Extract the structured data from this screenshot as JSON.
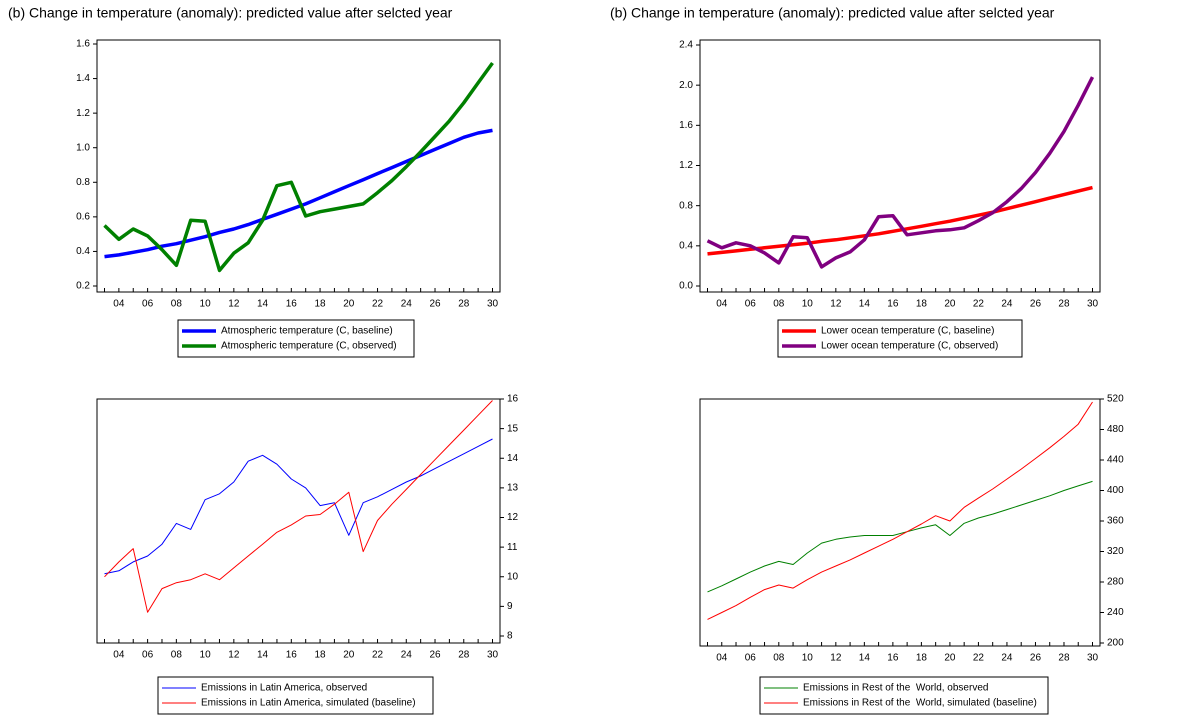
{
  "chart_data": [
    {
      "type": "line",
      "title": "(b) Change in temperature (anomaly): predicted value after selcted year",
      "categories": [
        null,
        "04",
        null,
        "06",
        null,
        "08",
        null,
        "10",
        null,
        "12",
        null,
        "14",
        null,
        "16",
        null,
        "18",
        null,
        "20",
        null,
        "22",
        null,
        "24",
        null,
        "26",
        null,
        "28",
        null,
        "30"
      ],
      "series": [
        {
          "name": "Atmospheric temperature (C, baseline)",
          "color": "#0000ff",
          "values": [
            0.37,
            0.38,
            0.395,
            0.41,
            0.43,
            0.445,
            0.465,
            0.485,
            0.51,
            0.53,
            0.555,
            0.585,
            0.615,
            0.645,
            0.675,
            0.71,
            0.745,
            0.78,
            0.815,
            0.85,
            0.885,
            0.92,
            0.955,
            0.99,
            1.025,
            1.06,
            1.085,
            1.1
          ]
        },
        {
          "name": "Atmospheric temperature (C, observed)",
          "color": "#008000",
          "values": [
            0.55,
            0.47,
            0.53,
            0.49,
            0.41,
            0.32,
            0.58,
            0.575,
            0.29,
            0.39,
            0.45,
            0.58,
            0.78,
            0.8,
            0.605,
            0.63,
            0.645,
            0.66,
            0.675,
            0.74,
            0.81,
            0.89,
            0.975,
            1.065,
            1.155,
            1.26,
            1.375,
            1.49
          ]
        }
      ],
      "ylim": [
        0.2,
        1.6
      ],
      "yticks": [
        0.2,
        0.4,
        0.6,
        0.8,
        {
          "value": 1,
          "label": "1.0"
        },
        1.2,
        1.4,
        1.6
      ],
      "y_axis": "left"
    },
    {
      "type": "line",
      "title": "(b) Change in temperature (anomaly): predicted value after selcted year",
      "categories": [
        null,
        "04",
        null,
        "06",
        null,
        "08",
        null,
        "10",
        null,
        "12",
        null,
        "14",
        null,
        "16",
        null,
        "18",
        null,
        "20",
        null,
        "22",
        null,
        "24",
        null,
        "26",
        null,
        "28",
        null,
        "30"
      ],
      "series": [
        {
          "name": "Lower ocean temperature (C, baseline)",
          "color": "#ff0000",
          "values": [
            0.32,
            0.335,
            0.35,
            0.365,
            0.38,
            0.395,
            0.41,
            0.425,
            0.445,
            0.46,
            0.48,
            0.5,
            0.52,
            0.545,
            0.57,
            0.595,
            0.62,
            0.645,
            0.675,
            0.705,
            0.735,
            0.77,
            0.805,
            0.84,
            0.875,
            0.91,
            0.945,
            0.98
          ]
        },
        {
          "name": "Lower ocean temperature (C, observed)",
          "color": "#800080",
          "values": [
            0.45,
            0.38,
            0.43,
            0.4,
            0.33,
            0.23,
            0.49,
            0.48,
            0.19,
            0.28,
            0.34,
            0.46,
            0.69,
            0.7,
            0.51,
            0.53,
            0.55,
            0.56,
            0.58,
            0.65,
            0.73,
            0.84,
            0.97,
            1.13,
            1.32,
            1.54,
            1.8,
            2.08
          ]
        }
      ],
      "ylim": [
        0,
        2.4
      ],
      "yticks": [
        {
          "value": 0,
          "label": "0.0"
        },
        0.4,
        0.8,
        1.2,
        1.6,
        {
          "value": 2,
          "label": "2.0"
        },
        2.4
      ],
      "y_axis": "left"
    },
    {
      "type": "line",
      "categories": [
        null,
        "04",
        null,
        "06",
        null,
        "08",
        null,
        "10",
        null,
        "12",
        null,
        "14",
        null,
        "16",
        null,
        "18",
        null,
        "20",
        null,
        "22",
        null,
        "24",
        null,
        "26",
        null,
        "28",
        null,
        "30"
      ],
      "series": [
        {
          "name": "Emissions in Latin America, observed",
          "color": "#0000ff",
          "values": [
            10.1,
            10.2,
            10.5,
            10.7,
            11.1,
            11.8,
            11.6,
            12.6,
            12.8,
            13.2,
            13.9,
            14.1,
            13.8,
            13.3,
            13.0,
            12.4,
            12.5,
            11.4,
            12.5,
            12.7,
            12.95,
            13.2,
            13.4,
            13.65,
            13.9,
            14.15,
            14.4,
            14.65
          ]
        },
        {
          "name": "Emissions in Latin America, simulated (baseline)",
          "color": "#ff0000",
          "values": [
            10.0,
            10.5,
            10.95,
            8.8,
            9.6,
            9.8,
            9.9,
            10.1,
            9.9,
            10.3,
            10.7,
            11.1,
            11.5,
            11.75,
            12.05,
            12.1,
            12.45,
            12.85,
            10.85,
            11.9,
            12.45,
            12.95,
            13.45,
            13.95,
            14.45,
            14.95,
            15.45,
            15.95
          ]
        }
      ],
      "ylim": [
        8,
        16
      ],
      "yticks": [
        8,
        9,
        10,
        11,
        12,
        13,
        14,
        15,
        16
      ],
      "y_axis": "right"
    },
    {
      "type": "line",
      "categories": [
        null,
        "04",
        null,
        "06",
        null,
        "08",
        null,
        "10",
        null,
        "12",
        null,
        "14",
        null,
        "16",
        null,
        "18",
        null,
        "20",
        null,
        "22",
        null,
        "24",
        null,
        "26",
        null,
        "28",
        null,
        "30"
      ],
      "series": [
        {
          "name": "Emissions in Rest of the  World, observed",
          "color": "#008000",
          "values": [
            267,
            275,
            284,
            293,
            301,
            307,
            303,
            318,
            331,
            336,
            339,
            341,
            341,
            341,
            346,
            351,
            355,
            341,
            357,
            364,
            369,
            375,
            381,
            387,
            393,
            400,
            406,
            412
          ]
        },
        {
          "name": "Emissions in Rest of the  World, simulated (baseline)",
          "color": "#ff0000",
          "values": [
            231,
            240,
            249,
            260,
            270,
            276,
            272,
            283,
            293,
            301,
            309,
            318,
            327,
            336,
            346,
            356,
            367,
            360,
            378,
            390,
            402,
            415,
            428,
            442,
            456,
            471,
            487,
            516
          ]
        }
      ],
      "ylim": [
        200,
        520
      ],
      "yticks": [
        200,
        240,
        280,
        320,
        360,
        400,
        440,
        480,
        520
      ],
      "y_axis": "right"
    }
  ]
}
